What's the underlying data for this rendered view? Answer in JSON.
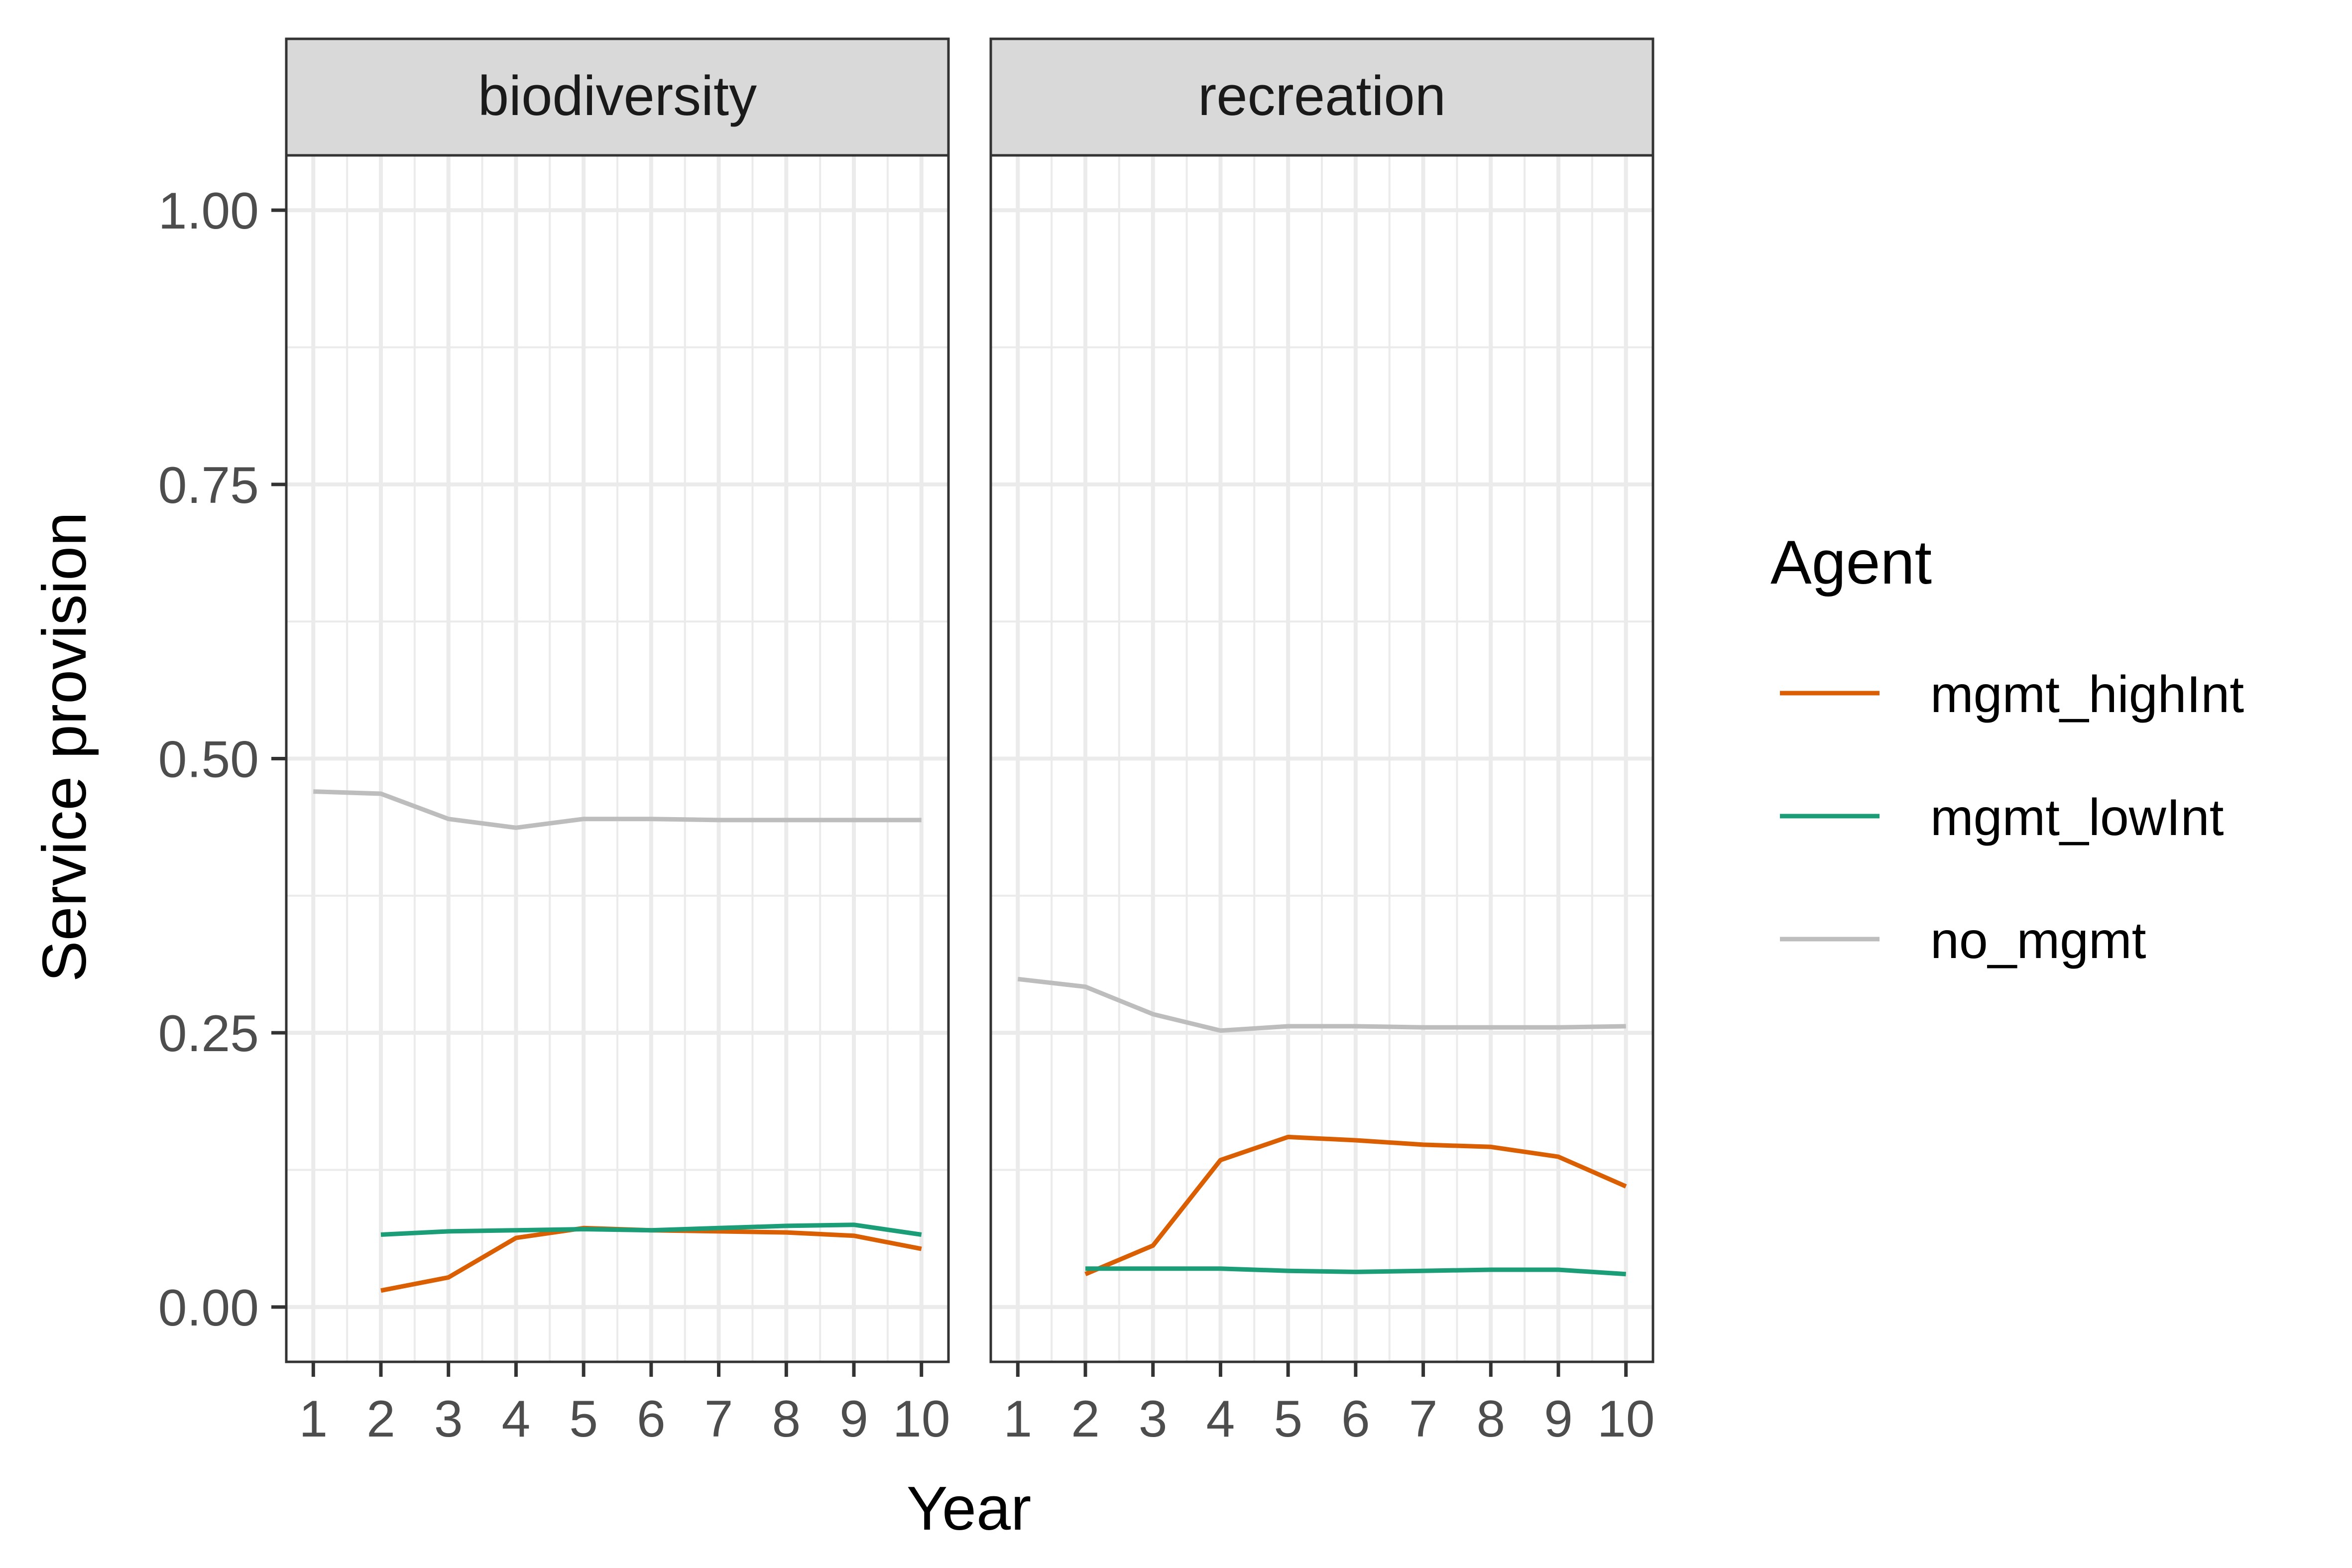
{
  "chart_data": {
    "type": "line",
    "layout": "faceted",
    "ylabel": "Service provision",
    "xlabel": "Year",
    "ylim": [
      -0.05,
      1.05
    ],
    "y_ticks": [
      0.0,
      0.25,
      0.5,
      0.75,
      1.0
    ],
    "y_tick_labels": [
      "0.00",
      "0.25",
      "0.50",
      "0.75",
      "1.00"
    ],
    "xlim": [
      0.6,
      10.4
    ],
    "x_ticks": [
      1,
      2,
      3,
      4,
      5,
      6,
      7,
      8,
      9,
      10
    ],
    "x_tick_labels": [
      "1",
      "2",
      "3",
      "4",
      "5",
      "6",
      "7",
      "8",
      "9",
      "10"
    ],
    "grid": true,
    "legend": {
      "title": "Agent",
      "placement": "right",
      "entries": [
        {
          "name": "mgmt_highInt",
          "color": "#d95f02"
        },
        {
          "name": "mgmt_lowInt",
          "color": "#1b9e77"
        },
        {
          "name": "no_mgmt",
          "color": "#bdbdbd"
        }
      ]
    },
    "facets": [
      {
        "title": "biodiversity",
        "series": [
          {
            "name": "mgmt_highInt",
            "x": [
              2,
              3,
              4,
              5,
              6,
              7,
              8,
              9,
              10
            ],
            "values": [
              0.015,
              0.027,
              0.063,
              0.072,
              0.07,
              0.069,
              0.068,
              0.065,
              0.053
            ]
          },
          {
            "name": "mgmt_lowInt",
            "x": [
              2,
              3,
              4,
              5,
              6,
              7,
              8,
              9,
              10
            ],
            "values": [
              0.066,
              0.069,
              0.07,
              0.071,
              0.07,
              0.072,
              0.074,
              0.075,
              0.066
            ]
          },
          {
            "name": "no_mgmt",
            "x": [
              1,
              2,
              3,
              4,
              5,
              6,
              7,
              8,
              9,
              10
            ],
            "values": [
              0.47,
              0.468,
              0.445,
              0.437,
              0.445,
              0.445,
              0.444,
              0.444,
              0.444,
              0.444
            ]
          }
        ]
      },
      {
        "title": "recreation",
        "series": [
          {
            "name": "mgmt_highInt",
            "x": [
              2,
              3,
              4,
              5,
              6,
              7,
              8,
              9,
              10
            ],
            "values": [
              0.03,
              0.056,
              0.134,
              0.155,
              0.152,
              0.148,
              0.146,
              0.137,
              0.11
            ]
          },
          {
            "name": "mgmt_lowInt",
            "x": [
              2,
              3,
              4,
              5,
              6,
              7,
              8,
              9,
              10
            ],
            "values": [
              0.035,
              0.035,
              0.035,
              0.033,
              0.032,
              0.033,
              0.034,
              0.034,
              0.03
            ]
          },
          {
            "name": "no_mgmt",
            "x": [
              1,
              2,
              3,
              4,
              5,
              6,
              7,
              8,
              9,
              10
            ],
            "values": [
              0.299,
              0.292,
              0.267,
              0.252,
              0.256,
              0.256,
              0.255,
              0.255,
              0.255,
              0.256
            ]
          }
        ]
      }
    ]
  }
}
